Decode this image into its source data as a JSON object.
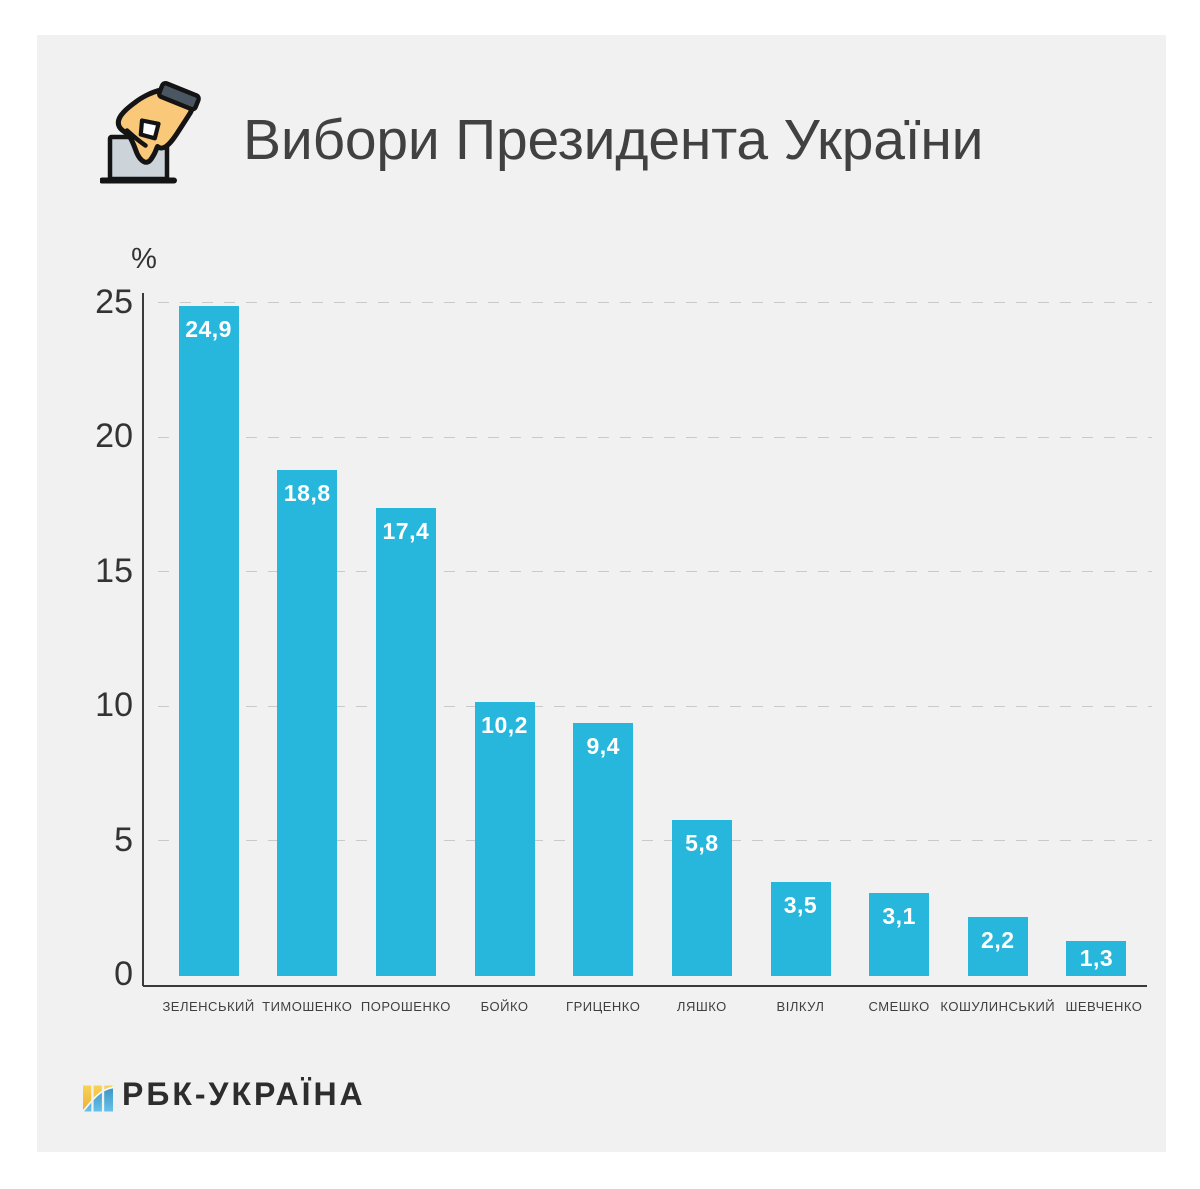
{
  "header": {
    "title": "Вибори Президента України",
    "icon": "hand-ballot-box-icon"
  },
  "chart_data": {
    "type": "bar",
    "title": "Вибори Президента України",
    "xlabel": "",
    "ylabel": "%",
    "categories": [
      "ЗЕЛЕНСЬКИЙ",
      "ТИМОШЕНКО",
      "ПОРОШЕНКО",
      "БОЙКО",
      "ГРИЦЕНКО",
      "ЛЯШКО",
      "ВІЛКУЛ",
      "СМЕШКО",
      "КОШУЛИНСЬКИЙ",
      "ШЕВЧЕНКО"
    ],
    "values": [
      24.9,
      18.8,
      17.4,
      10.2,
      9.4,
      5.8,
      3.5,
      3.1,
      2.2,
      1.3
    ],
    "value_labels": [
      "24,9",
      "18,8",
      "17,4",
      "10,2",
      "9,4",
      "5,8",
      "3,5",
      "3,1",
      "2,2",
      "1,3"
    ],
    "yticks": [
      0,
      5,
      10,
      15,
      20,
      25
    ],
    "ylim": [
      0,
      25
    ],
    "grid": "horizontal-dashed",
    "legend": "none",
    "bar_color": "#27b7dc",
    "value_label_color": "#ffffff"
  },
  "footer": {
    "logo_text": "РБК-УКРАЇНА",
    "logo_icon": "rbc-ukraine-logo"
  },
  "colors": {
    "panel_background": "#f1f1f2",
    "page_background": "#ffffff",
    "bar": "#27b7dc",
    "axis": "#3a3a3a",
    "gridline": "#c9c9c9",
    "title_text": "#414141",
    "tick_text": "#333333",
    "category_text": "#3f3f3f",
    "logo_text": "#2d2d2d"
  }
}
